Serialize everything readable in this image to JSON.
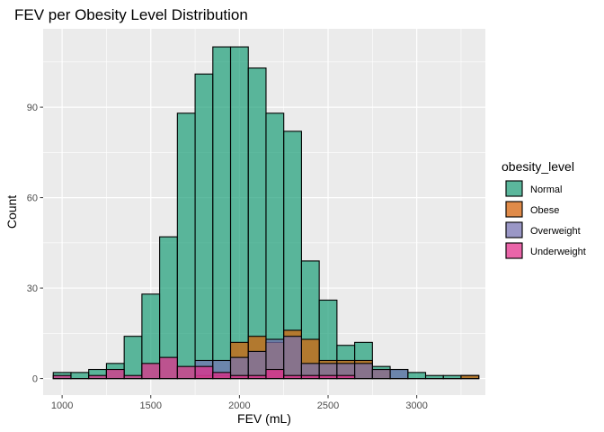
{
  "chart_data": {
    "type": "histogram",
    "title": "FEV per Obesity Level Distribution",
    "xlabel": "FEV (mL)",
    "ylabel": "Count",
    "xlim": [
      893,
      3387
    ],
    "ylim": [
      -5.5,
      116
    ],
    "x_ticks": [
      1000,
      1500,
      2000,
      2500,
      3000
    ],
    "y_ticks": [
      0,
      30,
      60,
      90
    ],
    "x_tick_labels": [
      "1000",
      "1500",
      "2000",
      "2500",
      "3000"
    ],
    "y_tick_labels": [
      "0",
      "30",
      "60",
      "90"
    ],
    "bin_start": 950,
    "bin_width": 100,
    "grid": true,
    "bars_overlap": true,
    "legend": {
      "title": "obesity_level",
      "position": "right"
    },
    "series": [
      {
        "name": "Normal",
        "color": "#1B9E77",
        "values": [
          2,
          2,
          3,
          5,
          14,
          28,
          47,
          88,
          101,
          110,
          110,
          103,
          88,
          82,
          39,
          26,
          11,
          12,
          4,
          3,
          2,
          1,
          1,
          1
        ]
      },
      {
        "name": "Obese",
        "color": "#D95F02",
        "values": [
          0,
          0,
          0,
          0,
          0,
          0,
          0,
          0,
          1,
          1,
          12,
          14,
          12,
          16,
          13,
          6,
          6,
          6,
          3,
          0,
          0,
          0,
          0,
          1
        ]
      },
      {
        "name": "Overweight",
        "color": "#7570B3",
        "values": [
          0,
          0,
          0,
          0,
          0,
          0,
          0,
          0,
          6,
          6,
          7,
          9,
          13,
          14,
          5,
          5,
          5,
          5,
          3,
          3,
          0,
          0,
          0,
          0
        ]
      },
      {
        "name": "Underweight",
        "color": "#E7298A",
        "values": [
          1,
          0,
          1,
          3,
          1,
          5,
          7,
          4,
          4,
          2,
          1,
          1,
          3,
          1,
          1,
          1,
          1,
          0,
          0,
          0,
          0,
          0,
          0,
          0
        ]
      }
    ]
  }
}
